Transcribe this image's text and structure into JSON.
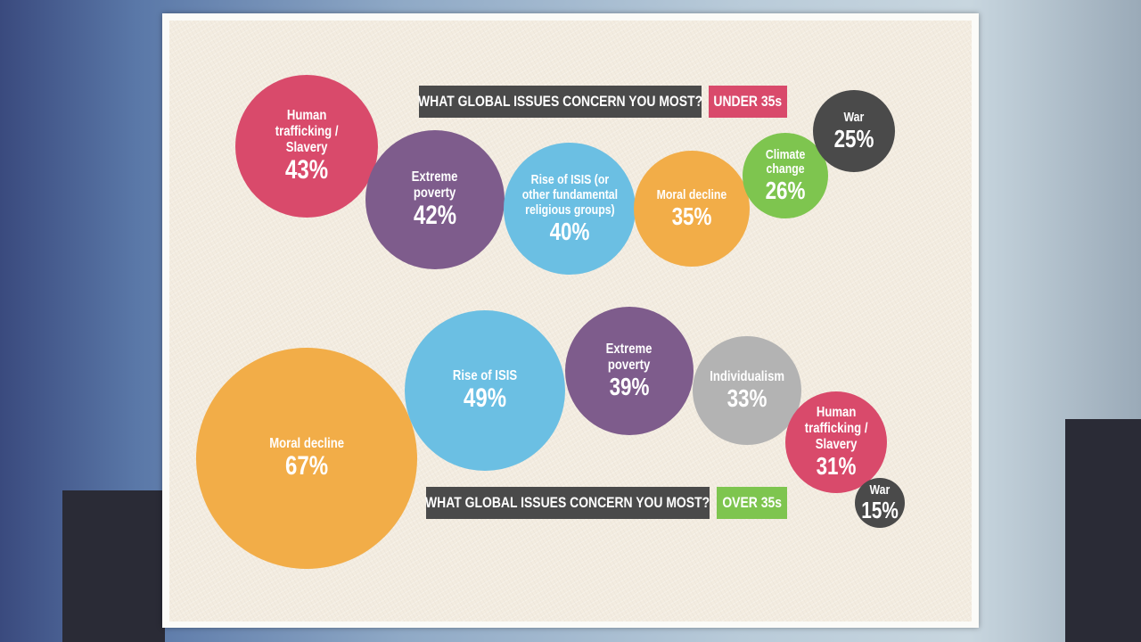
{
  "chart_data": [
    {
      "type": "bubble",
      "title": "WHAT GLOBAL ISSUES CONCERN YOU MOST?",
      "group_label": "UNDER 35s",
      "group_color": "#d94a6b",
      "items": [
        {
          "label": "Human\ntrafficking /\nSlavery",
          "value": 43,
          "display": "43%",
          "color": "#d94a6b"
        },
        {
          "label": "Extreme\npoverty",
          "value": 42,
          "display": "42%",
          "color": "#7e5c8c"
        },
        {
          "label": "Rise of ISIS (or\nother fundamental\nreligious groups)",
          "value": 40,
          "display": "40%",
          "color": "#6bbfe3"
        },
        {
          "label": "Moral decline",
          "value": 35,
          "display": "35%",
          "color": "#f2ad48"
        },
        {
          "label": "Climate\nchange",
          "value": 26,
          "display": "26%",
          "color": "#7ec54f"
        },
        {
          "label": "War",
          "value": 25,
          "display": "25%",
          "color": "#4a4a4a"
        }
      ]
    },
    {
      "type": "bubble",
      "title": "WHAT GLOBAL ISSUES CONCERN YOU MOST?",
      "group_label": "OVER 35s",
      "group_color": "#7ec54f",
      "items": [
        {
          "label": "Moral decline",
          "value": 67,
          "display": "67%",
          "color": "#f2ad48"
        },
        {
          "label": "Rise of ISIS",
          "value": 49,
          "display": "49%",
          "color": "#6bbfe3"
        },
        {
          "label": "Extreme\npoverty",
          "value": 39,
          "display": "39%",
          "color": "#7e5c8c"
        },
        {
          "label": "Individualism",
          "value": 33,
          "display": "33%",
          "color": "#b3b3b3"
        },
        {
          "label": "Human\ntrafficking /\nSlavery",
          "value": 31,
          "display": "31%",
          "color": "#d94a6b"
        },
        {
          "label": "War",
          "value": 15,
          "display": "15%",
          "color": "#4a4a4a"
        }
      ]
    }
  ]
}
